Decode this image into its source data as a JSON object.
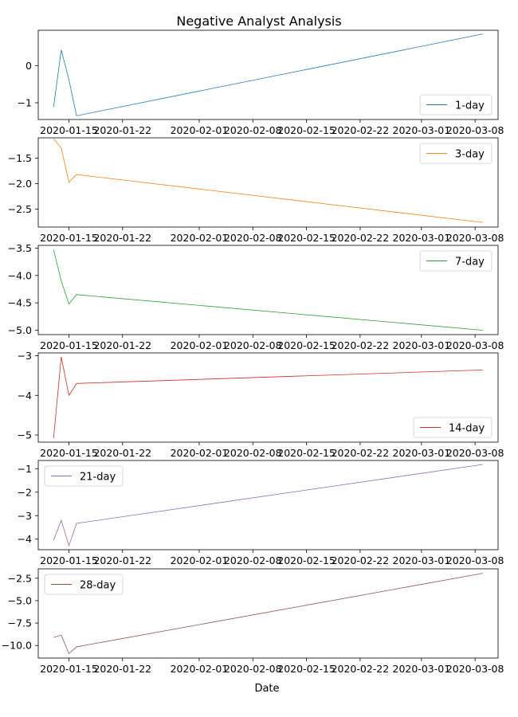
{
  "chart_data": {
    "type": "line",
    "title": "Negative Analyst Analysis",
    "xlabel": "Date",
    "x_tick_labels": [
      "2020-01-15",
      "2020-01-22",
      "2020-02-01",
      "2020-02-08",
      "2020-02-15",
      "2020-02-22",
      "2020-03-01",
      "2020-03-08"
    ],
    "x_tick_dates": [
      "2020-01-15",
      "2020-01-22",
      "2020-02-01",
      "2020-02-08",
      "2020-02-15",
      "2020-02-22",
      "2020-03-01",
      "2020-03-08"
    ],
    "x_dates": [
      "2020-01-13",
      "2020-01-14",
      "2020-01-15",
      "2020-01-16",
      "2020-03-09"
    ],
    "xlim": [
      "2020-01-11",
      "2020-03-11"
    ],
    "grid": false,
    "panels": [
      {
        "series": {
          "name": "1-day",
          "color": "#1f77b4",
          "values": [
            -1.12,
            0.42,
            -0.38,
            -1.35,
            0.85
          ]
        },
        "ylim": [
          -1.45,
          0.95
        ],
        "yticks": [
          -1,
          0
        ],
        "y_tick_labels": [
          "−1",
          "0"
        ],
        "legend": "lower-right"
      },
      {
        "series": {
          "name": "3-day",
          "color": "#ff7f0e",
          "values": [
            -1.12,
            -1.3,
            -1.97,
            -1.82,
            -2.76
          ]
        },
        "ylim": [
          -2.85,
          -1.1
        ],
        "yticks": [
          -2.5,
          -2,
          -1.5
        ],
        "y_tick_labels": [
          "−2.5",
          "−2.0",
          "−1.5"
        ],
        "legend": "upper-right"
      },
      {
        "series": {
          "name": "7-day",
          "color": "#2ca02c",
          "values": [
            -3.53,
            -4.1,
            -4.52,
            -4.35,
            -5.0
          ]
        },
        "ylim": [
          -5.08,
          -3.45
        ],
        "yticks": [
          -5,
          -4.5,
          -4,
          -3.5
        ],
        "y_tick_labels": [
          "−5.0",
          "−4.5",
          "−4.0",
          "−3.5"
        ],
        "legend": "upper-right"
      },
      {
        "series": {
          "name": "14-day",
          "color": "#d62728",
          "values": [
            -5.08,
            -3.03,
            -4.0,
            -3.7,
            -3.36
          ]
        },
        "ylim": [
          -5.18,
          -2.93
        ],
        "yticks": [
          -5,
          -4,
          -3
        ],
        "y_tick_labels": [
          "−5",
          "−4",
          "−3"
        ],
        "legend": "lower-right"
      },
      {
        "series": {
          "name": "21-day",
          "color": "#9467bd",
          "values": [
            -4.05,
            -3.2,
            -4.28,
            -3.33,
            -0.82
          ]
        },
        "ylim": [
          -4.45,
          -0.65
        ],
        "yticks": [
          -4,
          -3,
          -2,
          -1
        ],
        "y_tick_labels": [
          "−4",
          "−3",
          "−2",
          "−1"
        ],
        "legend": "upper-left"
      },
      {
        "series": {
          "name": "28-day",
          "color": "#8c564b",
          "values": [
            -9.1,
            -8.85,
            -10.9,
            -10.15,
            -1.95
          ]
        },
        "ylim": [
          -11.4,
          -1.45
        ],
        "yticks": [
          -10,
          -7.5,
          -5,
          -2.5
        ],
        "y_tick_labels": [
          "−10.0",
          "−7.5",
          "−5.0",
          "−2.5"
        ],
        "legend": "upper-left"
      }
    ]
  }
}
